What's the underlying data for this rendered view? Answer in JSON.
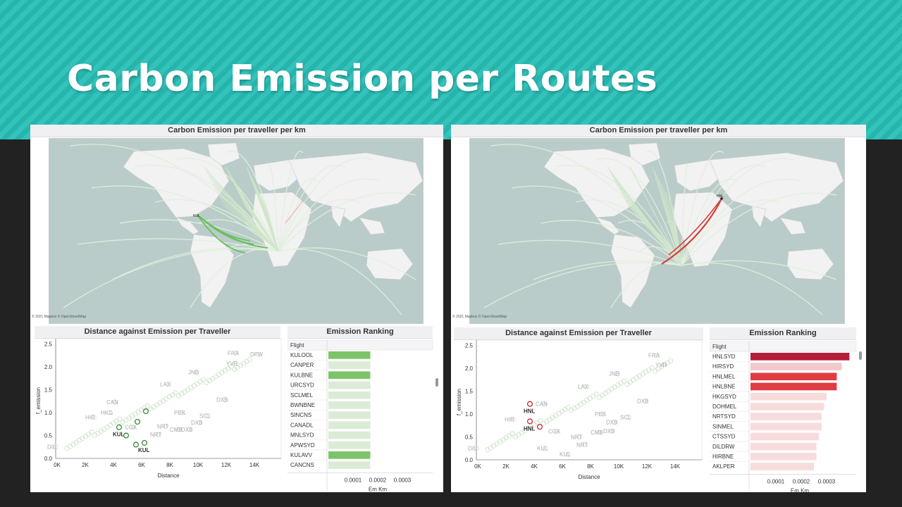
{
  "slide": {
    "title": "Carbon Emission per Routes"
  },
  "left": {
    "map": {
      "title": "Carbon Emission per traveller per km",
      "attribution": "© 2021 Mapbox © OpenStreetMap",
      "highlight_label": "KUL",
      "highlight_color": "#6abf5e"
    },
    "scatter": {
      "title": "Distance against Emission per Traveller",
      "ylabel": "f_emission",
      "xlabel": "Distance",
      "highlight_color": "#3a8a36",
      "highlight_points": [
        {
          "label": "KUL",
          "x": 4500,
          "y": 0.68
        },
        {
          "label": "KUL",
          "x": 6300,
          "y": 0.34
        },
        {
          "label": "",
          "x": 5700,
          "y": 0.3
        },
        {
          "label": "",
          "x": 5000,
          "y": 0.5
        },
        {
          "label": "",
          "x": 5800,
          "y": 0.8
        },
        {
          "label": "",
          "x": 6400,
          "y": 1.03
        }
      ],
      "faded_labels": [
        {
          "label": "CAN",
          "x": 4200,
          "y": 1.23
        },
        {
          "label": "HKG",
          "x": 3800,
          "y": 1.0
        },
        {
          "label": "HIR",
          "x": 2700,
          "y": 0.9
        },
        {
          "label": "CGK",
          "x": 5500,
          "y": 0.68
        },
        {
          "label": "NRT",
          "x": 7300,
          "y": 0.52
        },
        {
          "label": "NRT",
          "x": 7800,
          "y": 0.7
        },
        {
          "label": "CMB",
          "x": 8700,
          "y": 0.63
        },
        {
          "label": "DXB",
          "x": 9500,
          "y": 0.63
        },
        {
          "label": "DXB",
          "x": 10200,
          "y": 0.78
        },
        {
          "label": "PEK",
          "x": 9000,
          "y": 1.0
        },
        {
          "label": "SCL",
          "x": 10800,
          "y": 0.93
        },
        {
          "label": "DXB",
          "x": 12000,
          "y": 1.28
        },
        {
          "label": "LAX",
          "x": 8000,
          "y": 1.62
        },
        {
          "label": "JNB",
          "x": 10000,
          "y": 1.88
        },
        {
          "label": "YVR",
          "x": 12700,
          "y": 2.07
        },
        {
          "label": "FRA",
          "x": 12800,
          "y": 2.3
        },
        {
          "label": "DFW",
          "x": 14400,
          "y": 2.27
        },
        {
          "label": "DIL",
          "x": 0,
          "y": 0.25
        }
      ]
    },
    "ranking": {
      "title": "Emission Ranking",
      "col_header": "Flight",
      "xlabel": "Em Km",
      "rows": [
        {
          "flight": "KULOOL",
          "value": 0.00017,
          "color": "#7cc46a"
        },
        {
          "flight": "CANPER",
          "value": 0.00017,
          "color": "#dcebd6"
        },
        {
          "flight": "KULBNE",
          "value": 0.00017,
          "color": "#7cc46a"
        },
        {
          "flight": "URCSYD",
          "value": 0.00017,
          "color": "#dcebd6"
        },
        {
          "flight": "SCLMEL",
          "value": 0.00017,
          "color": "#dcebd6"
        },
        {
          "flight": "BWNBNE",
          "value": 0.00017,
          "color": "#dcebd6"
        },
        {
          "flight": "SINCNS",
          "value": 0.00017,
          "color": "#dcebd6"
        },
        {
          "flight": "CANADL",
          "value": 0.00017,
          "color": "#dcebd6"
        },
        {
          "flight": "MNLSYD",
          "value": 0.00017,
          "color": "#dcebd6"
        },
        {
          "flight": "APWSYD",
          "value": 0.00017,
          "color": "#dcebd6"
        },
        {
          "flight": "KULAVV",
          "value": 0.00017,
          "color": "#7cc46a"
        },
        {
          "flight": "CANCNS",
          "value": 0.00017,
          "color": "#dcebd6"
        }
      ]
    }
  },
  "right": {
    "map": {
      "title": "Carbon Emission per traveller per km",
      "attribution": "© 2021 Mapbox © OpenStreetMap",
      "highlight_label": "HNL",
      "highlight_color": "#d83c3c"
    },
    "scatter": {
      "title": "Distance against Emission per Traveller",
      "ylabel": "f_emission",
      "xlabel": "Distance",
      "highlight_color": "#c0282d",
      "highlight_points": [
        {
          "label": "HNL",
          "x": 3800,
          "y": 1.22
        },
        {
          "label": "HNL",
          "x": 3800,
          "y": 0.84
        },
        {
          "label": "",
          "x": 4500,
          "y": 0.72
        }
      ],
      "faded_labels": [
        {
          "label": "CAN",
          "x": 4800,
          "y": 1.22
        },
        {
          "label": "HIR",
          "x": 2600,
          "y": 0.88
        },
        {
          "label": "CGK",
          "x": 5700,
          "y": 0.62
        },
        {
          "label": "KUL",
          "x": 4900,
          "y": 0.25
        },
        {
          "label": "KUL",
          "x": 6500,
          "y": 0.12
        },
        {
          "label": "NRT",
          "x": 7300,
          "y": 0.5
        },
        {
          "label": "NRT",
          "x": 7700,
          "y": 0.33
        },
        {
          "label": "CMB",
          "x": 8700,
          "y": 0.6
        },
        {
          "label": "DXB",
          "x": 9600,
          "y": 0.63
        },
        {
          "label": "DXB",
          "x": 9800,
          "y": 0.82
        },
        {
          "label": "PEK",
          "x": 9000,
          "y": 1.0
        },
        {
          "label": "SCL",
          "x": 10800,
          "y": 0.93
        },
        {
          "label": "DXB",
          "x": 12000,
          "y": 1.28
        },
        {
          "label": "LAX",
          "x": 7800,
          "y": 1.6
        },
        {
          "label": "JNB",
          "x": 10000,
          "y": 1.88
        },
        {
          "label": "YVR",
          "x": 13300,
          "y": 2.07
        },
        {
          "label": "FRA",
          "x": 12800,
          "y": 2.28
        },
        {
          "label": "DIL",
          "x": 0,
          "y": 0.25
        }
      ]
    },
    "ranking": {
      "title": "Emission Ranking",
      "col_header": "Flight",
      "xlabel": "Em Km",
      "rows": [
        {
          "flight": "HNLSYD",
          "value": 0.00039,
          "color": "#b51f3a"
        },
        {
          "flight": "HIRSYD",
          "value": 0.00036,
          "color": "#f1c9cc"
        },
        {
          "flight": "HNLMEL",
          "value": 0.00034,
          "color": "#df3c44"
        },
        {
          "flight": "HNLBNE",
          "value": 0.00034,
          "color": "#df3c44"
        },
        {
          "flight": "HKGSYD",
          "value": 0.0003,
          "color": "#f8dcdc"
        },
        {
          "flight": "DOHMEL",
          "value": 0.00029,
          "color": "#f8dcdc"
        },
        {
          "flight": "NRTSYD",
          "value": 0.00028,
          "color": "#f8dcdc"
        },
        {
          "flight": "SINMEL",
          "value": 0.00028,
          "color": "#f8dcdc"
        },
        {
          "flight": "CTSSYD",
          "value": 0.00027,
          "color": "#f8dcdc"
        },
        {
          "flight": "DILDRW",
          "value": 0.00026,
          "color": "#f8dcdc"
        },
        {
          "flight": "HIRBNE",
          "value": 0.00026,
          "color": "#f8dcdc"
        },
        {
          "flight": "AKLPER",
          "value": 0.00025,
          "color": "#f8dcdc"
        }
      ]
    }
  },
  "axes": {
    "scatter_y_ticks": [
      "0.0",
      "0.5",
      "1.0",
      "1.5",
      "2.0",
      "2.5"
    ],
    "scatter_x_ticks": [
      "0K",
      "2K",
      "4K",
      "6K",
      "8K",
      "10K",
      "12K",
      "14K"
    ],
    "rank_x_ticks": [
      "0.0001",
      "0.0002",
      "0.0003"
    ]
  }
}
